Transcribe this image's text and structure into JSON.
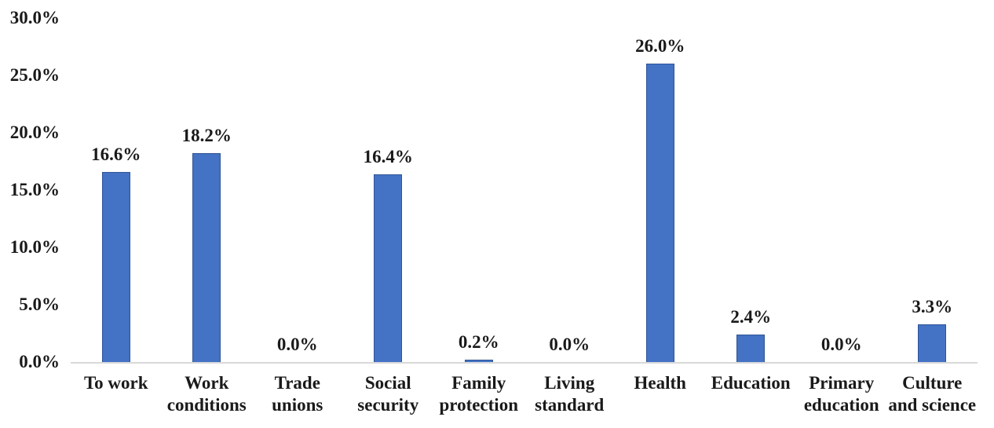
{
  "chart_data": {
    "type": "bar",
    "title": "",
    "xlabel": "",
    "ylabel": "",
    "categories": [
      "To work",
      "Work conditions",
      "Trade unions",
      "Social security",
      "Family protection",
      "Living standard",
      "Health",
      "Education",
      "Primary education",
      "Culture and science"
    ],
    "values": [
      16.6,
      18.2,
      0.0,
      16.4,
      0.2,
      0.0,
      26.0,
      2.4,
      0.0,
      3.3
    ],
    "data_labels": [
      "16.6%",
      "18.2%",
      "0.0%",
      "16.4%",
      "0.2%",
      "0.0%",
      "26.0%",
      "2.4%",
      "0.0%",
      "3.3%"
    ],
    "ylim": [
      0,
      30
    ],
    "ytick_step": 5,
    "yticks": [
      "0.0%",
      "5.0%",
      "10.0%",
      "15.0%",
      "20.0%",
      "25.0%",
      "30.0%"
    ],
    "grid": false,
    "legend": false,
    "bar_fill_color": "#4472C4",
    "bar_border_color": "#2F5597",
    "axis_line_color": "#D9D9D9",
    "text_color": "#1A1A1A"
  }
}
